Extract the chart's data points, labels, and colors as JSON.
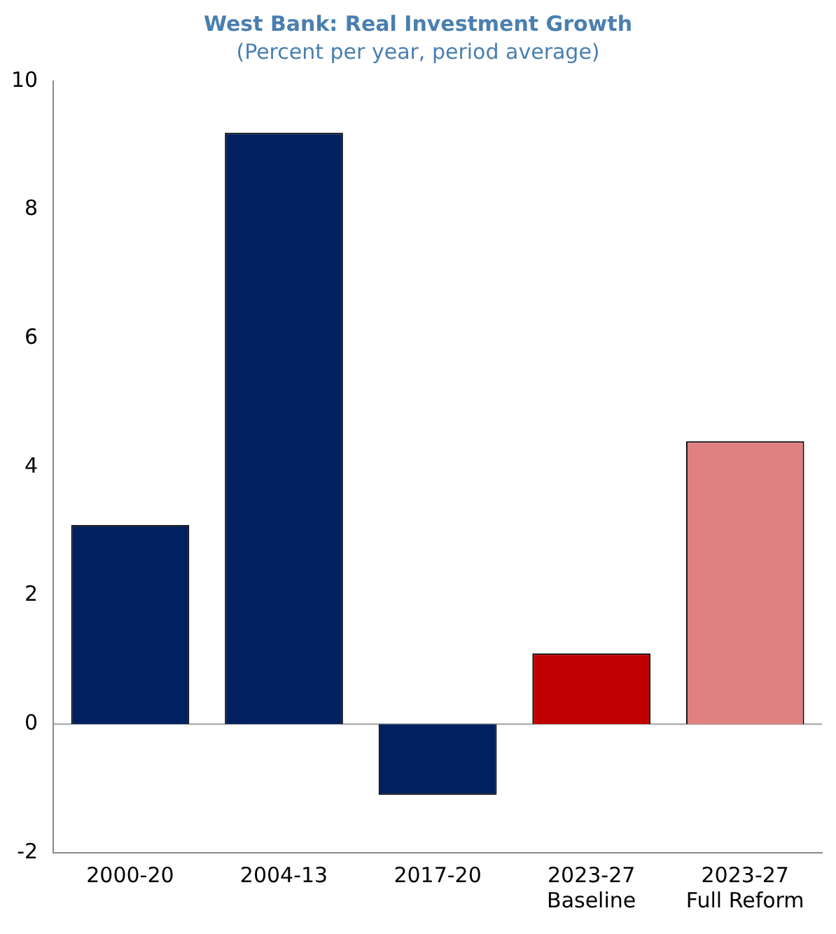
{
  "chart_data": {
    "type": "bar",
    "title": "West Bank: Real Investment Growth",
    "subtitle": "(Percent per year, period average)",
    "categories": [
      "2000-20",
      "2004-13",
      "2017-20",
      "2023-27\nBaseline",
      "2023-27\nFull Reform"
    ],
    "values": [
      3.1,
      9.2,
      -1.1,
      1.1,
      4.4
    ],
    "colors": [
      "#002060",
      "#002060",
      "#002060",
      "#c00000",
      "#e08080"
    ],
    "ref_lines": [
      {
        "axis": "y",
        "value": 0,
        "color": "#a0a0a0"
      }
    ],
    "ylim": [
      -2,
      10
    ],
    "yticks": [
      -2,
      0,
      2,
      4,
      6,
      8,
      10
    ],
    "grid": false,
    "legend": false
  }
}
